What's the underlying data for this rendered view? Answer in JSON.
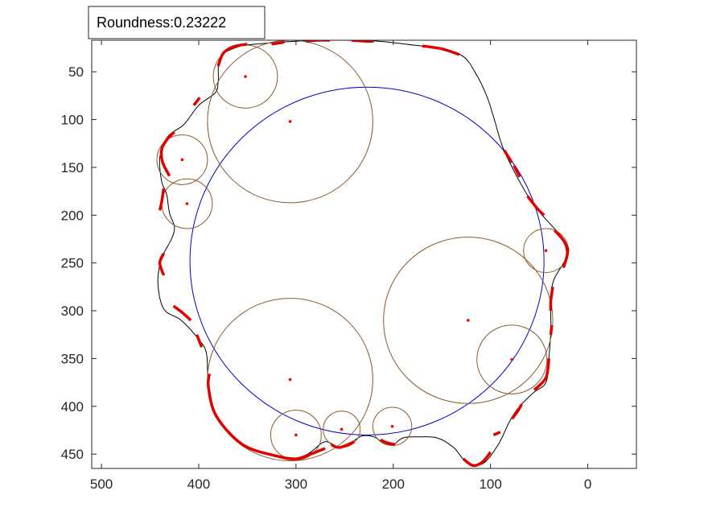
{
  "chart_data": {
    "type": "scatter",
    "title": "",
    "xlabel": "",
    "ylabel": "",
    "xlim": [
      510,
      -50
    ],
    "ylim": [
      465,
      17
    ],
    "x_reversed": true,
    "y_reversed": true,
    "grid": false,
    "xticks": [
      500,
      400,
      300,
      200,
      100,
      0
    ],
    "yticks": [
      50,
      100,
      150,
      200,
      250,
      300,
      350,
      400,
      450
    ],
    "annotation": {
      "text": "Roundness:0.23222"
    },
    "colors": {
      "outline": "#000000",
      "corner_segments": "#e00000",
      "inscribed_circles": "#8b5a2b",
      "enclosing_circle": "#0000cc",
      "centers": "#ff0000"
    },
    "outline": [
      [
        300,
        18
      ],
      [
        255,
        17
      ],
      [
        215,
        18
      ],
      [
        180,
        22
      ],
      [
        150,
        26
      ],
      [
        128,
        34
      ],
      [
        115,
        52
      ],
      [
        104,
        75
      ],
      [
        96,
        100
      ],
      [
        87,
        130
      ],
      [
        70,
        165
      ],
      [
        55,
        190
      ],
      [
        38,
        210
      ],
      [
        25,
        225
      ],
      [
        20,
        240
      ],
      [
        35,
        268
      ],
      [
        38,
        290
      ],
      [
        38,
        320
      ],
      [
        40,
        350
      ],
      [
        43,
        375
      ],
      [
        55,
        385
      ],
      [
        70,
        400
      ],
      [
        80,
        415
      ],
      [
        92,
        440
      ],
      [
        108,
        460
      ],
      [
        125,
        458
      ],
      [
        138,
        443
      ],
      [
        155,
        433
      ],
      [
        175,
        432
      ],
      [
        190,
        433
      ],
      [
        200,
        440
      ],
      [
        210,
        438
      ],
      [
        220,
        432
      ],
      [
        232,
        431
      ],
      [
        242,
        437
      ],
      [
        255,
        443
      ],
      [
        270,
        437
      ],
      [
        285,
        448
      ],
      [
        300,
        455
      ],
      [
        320,
        452
      ],
      [
        355,
        440
      ],
      [
        382,
        410
      ],
      [
        390,
        380
      ],
      [
        392,
        345
      ],
      [
        400,
        330
      ],
      [
        418,
        310
      ],
      [
        436,
        298
      ],
      [
        442,
        270
      ],
      [
        438,
        245
      ],
      [
        428,
        225
      ],
      [
        425,
        212
      ],
      [
        430,
        198
      ],
      [
        433,
        178
      ],
      [
        438,
        165
      ],
      [
        440,
        140
      ],
      [
        432,
        118
      ],
      [
        415,
        105
      ],
      [
        400,
        85
      ],
      [
        383,
        72
      ],
      [
        380,
        60
      ],
      [
        378,
        35
      ],
      [
        360,
        24
      ],
      [
        340,
        21
      ],
      [
        300,
        18
      ]
    ],
    "corner_segments": [
      [
        [
          380,
          44
        ],
        [
          375,
          31
        ],
        [
          365,
          24
        ],
        [
          350,
          21
        ]
      ],
      [
        [
          325,
          21
        ],
        [
          312,
          19
        ]
      ],
      [
        [
          290,
          18
        ],
        [
          278,
          17
        ],
        [
          265,
          17
        ]
      ],
      [
        [
          243,
          17
        ],
        [
          228,
          18
        ],
        [
          220,
          18
        ]
      ],
      [
        [
          170,
          23
        ],
        [
          150,
          26
        ],
        [
          132,
          32
        ]
      ],
      [
        [
          86,
          132
        ],
        [
          78,
          145
        ]
      ],
      [
        [
          76,
          148
        ],
        [
          70,
          160
        ]
      ],
      [
        [
          62,
          180
        ],
        [
          52,
          193
        ],
        [
          45,
          200
        ]
      ],
      [
        [
          34,
          216
        ],
        [
          24,
          228
        ],
        [
          21,
          240
        ],
        [
          25,
          255
        ]
      ],
      [
        [
          36,
          275
        ],
        [
          38,
          290
        ],
        [
          38,
          300
        ]
      ],
      [
        [
          37,
          315
        ],
        [
          38,
          325
        ]
      ],
      [
        [
          40,
          350
        ],
        [
          43,
          370
        ],
        [
          55,
          383
        ]
      ],
      [
        [
          68,
          398
        ],
        [
          72,
          405
        ],
        [
          78,
          413
        ]
      ],
      [
        [
          90,
          427
        ],
        [
          97,
          430
        ]
      ],
      [
        [
          100,
          448
        ],
        [
          108,
          458
        ],
        [
          118,
          462
        ],
        [
          128,
          455
        ]
      ],
      [
        [
          198,
          440
        ],
        [
          207,
          438
        ],
        [
          213,
          435
        ]
      ],
      [
        [
          240,
          437
        ],
        [
          255,
          443
        ],
        [
          264,
          440
        ]
      ],
      [
        [
          270,
          444
        ],
        [
          285,
          450
        ],
        [
          300,
          455
        ],
        [
          320,
          452
        ],
        [
          355,
          440
        ],
        [
          382,
          410
        ],
        [
          390,
          380
        ],
        [
          389,
          366
        ]
      ],
      [
        [
          397,
          338
        ],
        [
          402,
          325
        ]
      ],
      [
        [
          408,
          310
        ],
        [
          418,
          301
        ],
        [
          426,
          295
        ]
      ],
      [
        [
          436,
          263
        ],
        [
          440,
          250
        ],
        [
          436,
          240
        ]
      ],
      [
        [
          440,
          195
        ],
        [
          438,
          186
        ],
        [
          436,
          172
        ]
      ],
      [
        [
          430,
          159
        ],
        [
          437,
          145
        ],
        [
          438,
          131
        ],
        [
          432,
          120
        ],
        [
          425,
          113
        ]
      ],
      [
        [
          405,
          85
        ],
        [
          399,
          77
        ]
      ]
    ],
    "inscribed_circles": [
      {
        "cx": 352,
        "cy": 55,
        "r": 33
      },
      {
        "cx": 306,
        "cy": 102,
        "r": 85
      },
      {
        "cx": 417,
        "cy": 142,
        "r": 26
      },
      {
        "cx": 412,
        "cy": 188,
        "r": 26
      },
      {
        "cx": 43,
        "cy": 237,
        "r": 23
      },
      {
        "cx": 123,
        "cy": 310,
        "r": 87
      },
      {
        "cx": 78,
        "cy": 351,
        "r": 36
      },
      {
        "cx": 306,
        "cy": 372,
        "r": 85
      },
      {
        "cx": 300,
        "cy": 430,
        "r": 26
      },
      {
        "cx": 253,
        "cy": 424,
        "r": 19
      },
      {
        "cx": 201,
        "cy": 421,
        "r": 20
      }
    ],
    "enclosing_circle": {
      "cx": 227,
      "cy": 248,
      "r": 182
    },
    "centers": [
      [
        352,
        55
      ],
      [
        306,
        102
      ],
      [
        417,
        142
      ],
      [
        412,
        188
      ],
      [
        43,
        237
      ],
      [
        123,
        310
      ],
      [
        78,
        351
      ],
      [
        306,
        372
      ],
      [
        300,
        430
      ],
      [
        253,
        424
      ],
      [
        201,
        421
      ]
    ]
  }
}
